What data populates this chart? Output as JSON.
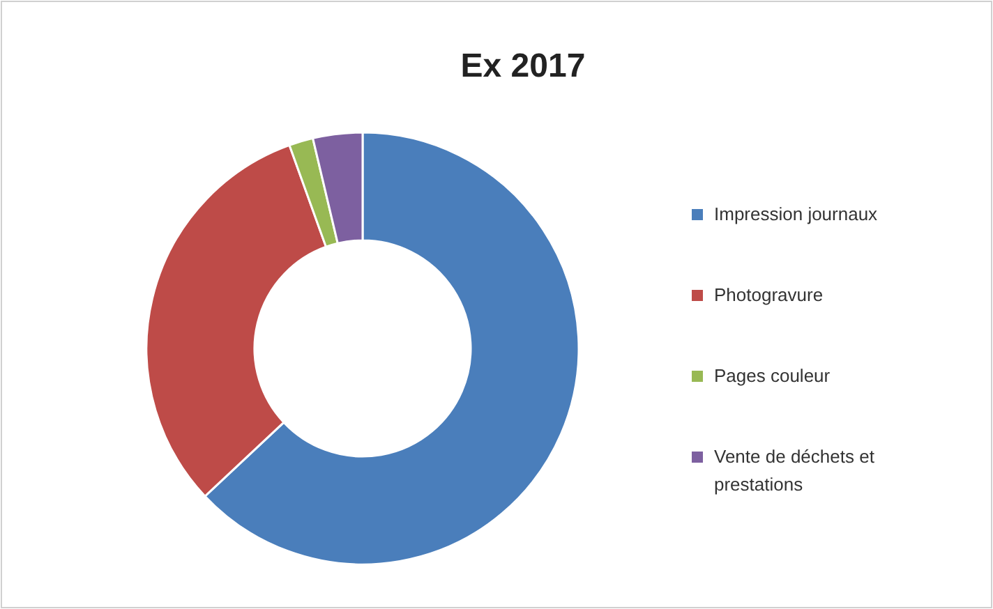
{
  "chart_data": {
    "type": "donut",
    "title": "Ex 2017",
    "categories": [
      "Impression journaux",
      "Photogravure",
      "Pages couleur",
      "Vente de déchets et prestations"
    ],
    "values": [
      63,
      31.5,
      1.8,
      3.7
    ],
    "colors": [
      "#4a7ebb",
      "#be4b48",
      "#98b954",
      "#7d60a0"
    ],
    "legend": "right"
  }
}
